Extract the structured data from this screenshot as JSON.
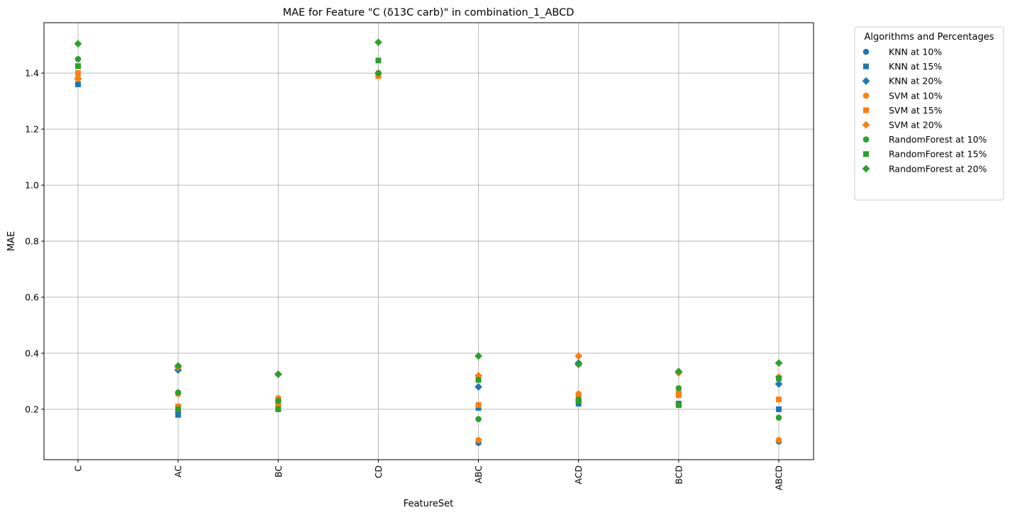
{
  "chart_data": {
    "type": "scatter",
    "title": "MAE for Feature \"C (δ13C carb)\" in combination_1_ABCD",
    "xlabel": "FeatureSet",
    "ylabel": "MAE",
    "categories": [
      "C",
      "AC",
      "BC",
      "CD",
      "ABC",
      "ACD",
      "BCD",
      "ABCD"
    ],
    "ylim": [
      0.02,
      1.58
    ],
    "yticks": [
      0.2,
      0.4,
      0.6,
      0.8,
      1.0,
      1.2,
      1.4
    ],
    "ytick_labels": [
      "0.2",
      "0.4",
      "0.6",
      "0.8",
      "1.0",
      "1.2",
      "1.4"
    ],
    "grid": true,
    "legend": {
      "title": "Algorithms and Percentages",
      "placement": "outside-right"
    },
    "colors": {
      "KNN": "#1f77b4",
      "SVM": "#ff7f0e",
      "RandomForest": "#2ca02c",
      "grid": "#b0b0b0"
    },
    "series": [
      {
        "name": "KNN at 10%",
        "algorithm": "KNN",
        "marker": "circle",
        "values": [
          1.38,
          0.19,
          0.23,
          1.4,
          0.08,
          0.23,
          0.22,
          0.085
        ]
      },
      {
        "name": "KNN at 15%",
        "algorithm": "KNN",
        "marker": "square",
        "values": [
          1.36,
          0.18,
          0.22,
          1.39,
          0.205,
          0.22,
          0.22,
          0.2
        ]
      },
      {
        "name": "KNN at 20%",
        "algorithm": "KNN",
        "marker": "diamond",
        "values": [
          1.38,
          0.34,
          0.325,
          1.4,
          0.28,
          0.365,
          0.33,
          0.29
        ]
      },
      {
        "name": "SVM at 10%",
        "algorithm": "SVM",
        "marker": "circle",
        "values": [
          1.38,
          0.255,
          0.24,
          1.4,
          0.09,
          0.255,
          0.26,
          0.09
        ]
      },
      {
        "name": "SVM at 15%",
        "algorithm": "SVM",
        "marker": "square",
        "values": [
          1.4,
          0.21,
          0.22,
          1.39,
          0.215,
          0.245,
          0.25,
          0.235
        ]
      },
      {
        "name": "SVM at 20%",
        "algorithm": "SVM",
        "marker": "diamond",
        "values": [
          1.38,
          0.35,
          0.325,
          1.4,
          0.32,
          0.39,
          0.33,
          0.315
        ]
      },
      {
        "name": "RandomForest at 10%",
        "algorithm": "RandomForest",
        "marker": "circle",
        "values": [
          1.45,
          0.26,
          0.23,
          1.4,
          0.165,
          0.235,
          0.275,
          0.17
        ]
      },
      {
        "name": "RandomForest at 15%",
        "algorithm": "RandomForest",
        "marker": "square",
        "values": [
          1.425,
          0.2,
          0.2,
          1.445,
          0.305,
          0.23,
          0.215,
          0.31
        ]
      },
      {
        "name": "RandomForest at 20%",
        "algorithm": "RandomForest",
        "marker": "diamond",
        "values": [
          1.505,
          0.355,
          0.325,
          1.51,
          0.39,
          0.36,
          0.335,
          0.365
        ]
      }
    ]
  }
}
